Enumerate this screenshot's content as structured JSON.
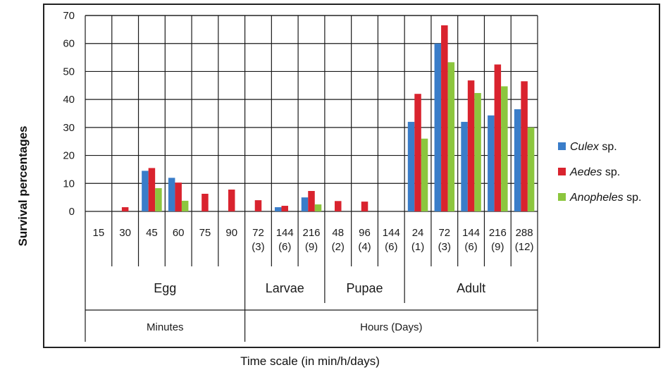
{
  "chart_data": {
    "type": "bar",
    "ylabel": "Survival percentages",
    "xlabel": "Time scale (in min/h/days)",
    "ylim": [
      0,
      70
    ],
    "yticks": [
      "0",
      "10",
      "20",
      "30",
      "40",
      "50",
      "60",
      "70"
    ],
    "grid": "horizontal",
    "legend_position": "right",
    "categories": [
      [
        "15"
      ],
      [
        "30"
      ],
      [
        "45"
      ],
      [
        "60"
      ],
      [
        "75"
      ],
      [
        "90"
      ],
      [
        "72",
        "(3)"
      ],
      [
        "144",
        "(6)"
      ],
      [
        "216",
        "(9)"
      ],
      [
        "48",
        "(2)"
      ],
      [
        "96",
        "(4)"
      ],
      [
        "144",
        "(6)"
      ],
      [
        "24",
        "(1)"
      ],
      [
        "72",
        "(3)"
      ],
      [
        "144",
        "(6)"
      ],
      [
        "216",
        "(9)"
      ],
      [
        "288",
        "(12)"
      ]
    ],
    "stages": [
      {
        "label": "Egg",
        "from": 0,
        "to": 5
      },
      {
        "label": "Larvae",
        "from": 6,
        "to": 8
      },
      {
        "label": "Pupae",
        "from": 9,
        "to": 11
      },
      {
        "label": "Adult",
        "from": 12,
        "to": 16
      }
    ],
    "units": [
      {
        "label": "Minutes",
        "from": 0,
        "to": 5
      },
      {
        "label": "Hours (Days)",
        "from": 6,
        "to": 16
      }
    ],
    "series": [
      {
        "name": "Culex",
        "suffix": " sp.",
        "color": "#3a7dc9",
        "values": [
          0,
          0,
          14.5,
          12,
          0,
          0,
          0,
          1.5,
          5,
          0,
          0,
          0,
          32,
          60,
          32,
          34.3,
          36.5
        ]
      },
      {
        "name": "Aedes",
        "suffix": " sp.",
        "color": "#d9232e",
        "values": [
          0,
          1.5,
          15.5,
          10.3,
          6.3,
          7.8,
          4,
          2,
          7.3,
          3.7,
          3.5,
          0,
          42,
          66.5,
          46.8,
          52.5,
          46.5
        ]
      },
      {
        "name": "Anopheles",
        "suffix": " sp.",
        "color": "#8cc63e",
        "values": [
          0,
          0,
          8.3,
          3.8,
          0,
          0,
          0,
          0,
          2.5,
          0,
          0,
          0,
          26,
          53.3,
          42.3,
          44.7,
          30
        ]
      }
    ]
  }
}
